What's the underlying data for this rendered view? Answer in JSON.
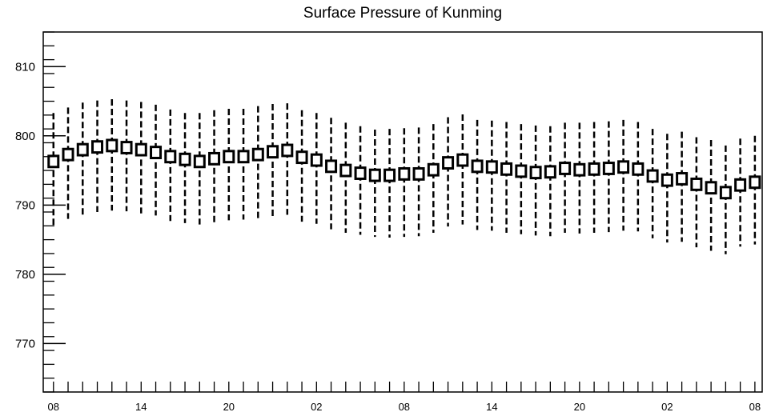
{
  "chart_data": {
    "type": "box",
    "title": "Surface Pressure of Kunming",
    "xlabel": "",
    "ylabel": "",
    "ylim": [
      763,
      815
    ],
    "xlim": [
      -0.7,
      48.5
    ],
    "grid": false,
    "y_ticks": [
      770,
      780,
      790,
      800,
      810
    ],
    "x_ticks": [
      {
        "pos": 0,
        "label": "08"
      },
      {
        "pos": 6,
        "label": "14"
      },
      {
        "pos": 12,
        "label": "20"
      },
      {
        "pos": 18,
        "label": "02"
      },
      {
        "pos": 24,
        "label": "08"
      },
      {
        "pos": 30,
        "label": "14"
      },
      {
        "pos": 36,
        "label": "20"
      },
      {
        "pos": 42,
        "label": "02"
      },
      {
        "pos": 48,
        "label": "08"
      }
    ],
    "series": [
      {
        "x": [
          0,
          1,
          2,
          3,
          4,
          5,
          6,
          7,
          8,
          9,
          10,
          11,
          12,
          13,
          14,
          15,
          16,
          17,
          18,
          19,
          20,
          21,
          22,
          23,
          24,
          25,
          26,
          27,
          28,
          29,
          30,
          31,
          32,
          33,
          34,
          35,
          36,
          37,
          38,
          39,
          40,
          41,
          42,
          43,
          44,
          45,
          46,
          47,
          48
        ],
        "median": [
          796.3,
          797.3,
          798.0,
          798.4,
          798.6,
          798.3,
          798.0,
          797.6,
          797.0,
          796.6,
          796.3,
          796.7,
          797.0,
          797.0,
          797.3,
          797.7,
          797.9,
          796.9,
          796.5,
          795.6,
          795.0,
          794.6,
          794.3,
          794.3,
          794.5,
          794.5,
          795.1,
          796.1,
          796.5,
          795.6,
          795.5,
          795.2,
          794.9,
          794.7,
          794.8,
          795.3,
          795.1,
          795.2,
          795.3,
          795.5,
          795.2,
          794.2,
          793.6,
          793.8,
          793.0,
          792.5,
          791.8,
          792.9,
          793.3
        ],
        "q1": [
          795.5,
          796.5,
          797.2,
          797.6,
          797.8,
          797.5,
          797.2,
          796.8,
          796.2,
          795.8,
          795.5,
          795.9,
          796.2,
          796.2,
          796.5,
          796.9,
          797.1,
          796.1,
          795.7,
          794.8,
          794.2,
          793.8,
          793.5,
          793.5,
          793.7,
          793.7,
          794.3,
          795.3,
          795.7,
          794.8,
          794.7,
          794.4,
          794.1,
          793.9,
          794.0,
          794.5,
          794.3,
          794.4,
          794.5,
          794.7,
          794.4,
          793.4,
          792.8,
          793.0,
          792.2,
          791.7,
          791.0,
          792.1,
          792.5
        ],
        "q3": [
          797.1,
          798.1,
          798.8,
          799.2,
          799.4,
          799.1,
          798.8,
          798.4,
          797.8,
          797.4,
          797.1,
          797.5,
          797.8,
          797.8,
          798.1,
          798.5,
          798.7,
          797.7,
          797.3,
          796.4,
          795.8,
          795.4,
          795.1,
          795.1,
          795.3,
          795.3,
          795.9,
          796.9,
          797.3,
          796.4,
          796.3,
          796.0,
          795.7,
          795.5,
          795.6,
          796.1,
          795.9,
          796.0,
          796.1,
          796.3,
          796.0,
          795.0,
          794.4,
          794.6,
          793.8,
          793.3,
          792.6,
          793.7,
          794.1
        ],
        "whisker_low": [
          787.1,
          788.0,
          788.6,
          789.0,
          789.2,
          789.1,
          788.8,
          788.5,
          787.7,
          787.4,
          787.2,
          787.5,
          787.8,
          787.9,
          788.1,
          788.4,
          788.6,
          787.6,
          787.3,
          786.5,
          786.0,
          785.7,
          785.4,
          785.3,
          785.4,
          785.5,
          786.0,
          786.9,
          787.2,
          786.4,
          786.3,
          786.0,
          785.8,
          785.6,
          785.5,
          786.0,
          785.9,
          786.0,
          786.1,
          786.3,
          786.2,
          785.2,
          784.6,
          784.7,
          783.9,
          783.4,
          782.9,
          784.0,
          784.3
        ],
        "whisker_high": [
          803.3,
          804.1,
          804.8,
          805.1,
          805.3,
          805.1,
          804.9,
          804.5,
          803.8,
          803.3,
          803.3,
          803.7,
          803.9,
          803.9,
          804.3,
          804.6,
          804.7,
          803.7,
          803.3,
          802.6,
          801.9,
          801.4,
          800.9,
          801.0,
          801.1,
          801.2,
          801.7,
          802.7,
          803.1,
          802.3,
          802.2,
          802.0,
          801.7,
          801.5,
          801.4,
          801.9,
          801.9,
          802.0,
          802.1,
          802.3,
          802.0,
          801.0,
          800.3,
          800.6,
          799.8,
          799.4,
          798.6,
          799.6,
          800.0
        ]
      }
    ]
  }
}
